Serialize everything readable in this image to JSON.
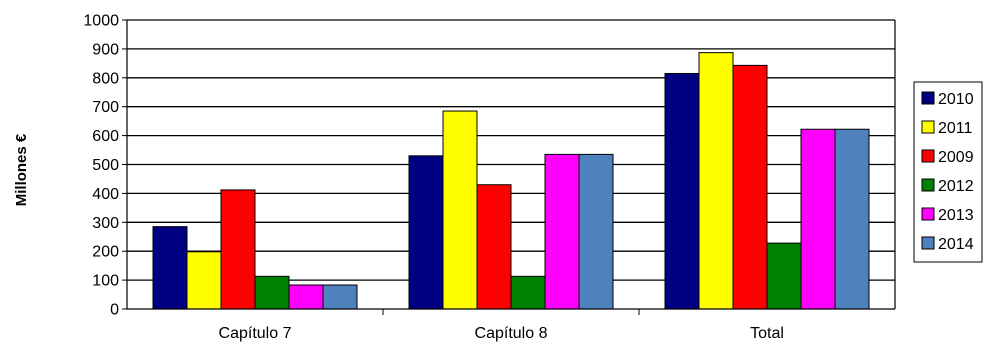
{
  "chart_data": {
    "type": "bar",
    "title": "",
    "xlabel": "",
    "ylabel": "Millones €",
    "ylim": [
      0,
      1000
    ],
    "ytick_step": 100,
    "grid": true,
    "legend_placement": "right",
    "categories": [
      "Capítulo 7",
      "Capítulo 8",
      "Total"
    ],
    "series": [
      {
        "name": "2010",
        "color": "#000080",
        "values": [
          285,
          530,
          815
        ]
      },
      {
        "name": "2011",
        "color": "#ffff00",
        "values": [
          198,
          685,
          887
        ]
      },
      {
        "name": "2009",
        "color": "#ff0000",
        "values": [
          412,
          430,
          843
        ]
      },
      {
        "name": "2012",
        "color": "#008000",
        "values": [
          113,
          113,
          228
        ]
      },
      {
        "name": "2013",
        "color": "#ff00ff",
        "values": [
          83,
          535,
          622
        ]
      },
      {
        "name": "2014",
        "color": "#4f81bd",
        "values": [
          83,
          535,
          622
        ]
      }
    ]
  }
}
